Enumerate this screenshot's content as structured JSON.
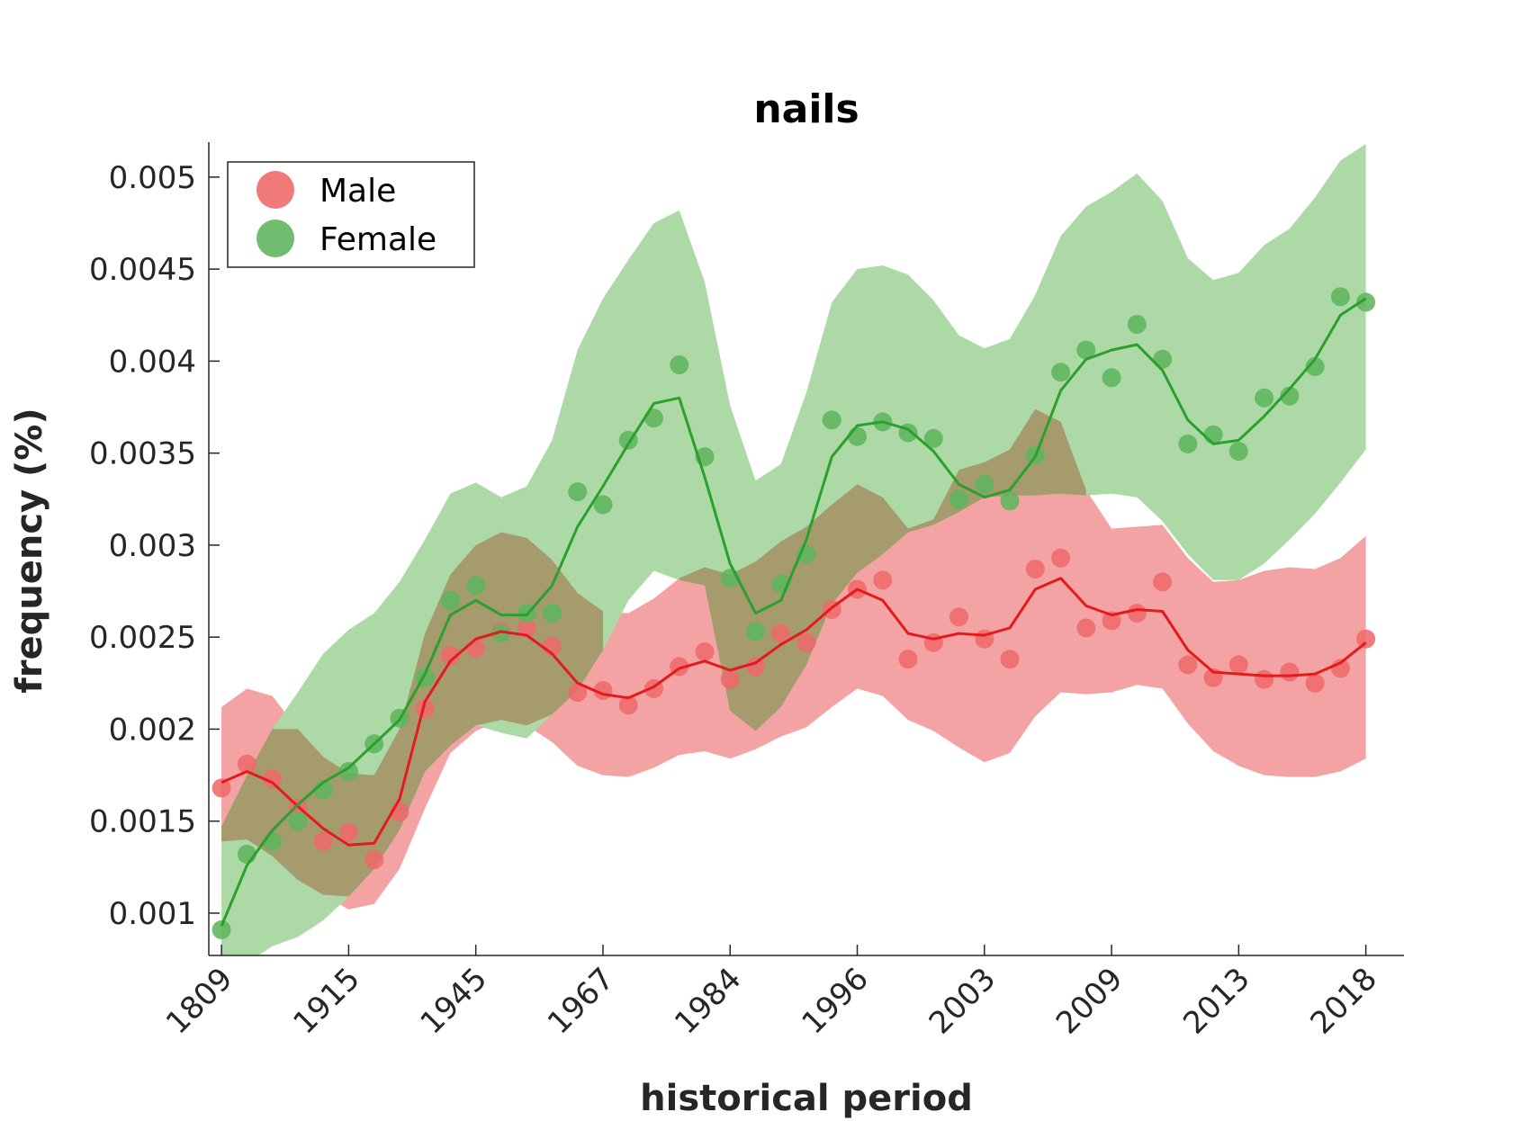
{
  "chart_data": {
    "type": "line",
    "title": "nails",
    "xlabel": "historical period",
    "ylabel": "frequency (%)",
    "x_tick_labels": [
      "1809",
      "1915",
      "1945",
      "1967",
      "1984",
      "1996",
      "2003",
      "2009",
      "2013",
      "2018"
    ],
    "y_tick_labels": [
      "0.001",
      "0.0015",
      "0.002",
      "0.0025",
      "0.003",
      "0.0035",
      "0.004",
      "0.0045",
      "0.005"
    ],
    "y_ticks": [
      0.001,
      0.0015,
      0.002,
      0.0025,
      0.003,
      0.0035,
      0.004,
      0.0045,
      0.005
    ],
    "ylim": [
      0.00077,
      0.00519
    ],
    "xlim": [
      -0.5,
      46.5
    ],
    "legend_position": "top-left",
    "grid": false,
    "series": [
      {
        "name": "Male",
        "color": "#e41a1c",
        "point_color": "#ee6a6b",
        "band_color": "#f4a3a4",
        "points": [
          0.00168,
          0.00181,
          0.00173,
          0.00157,
          0.00139,
          0.00144,
          0.00129,
          0.00155,
          0.00211,
          0.0024,
          0.00244,
          0.00253,
          0.00255,
          0.00245,
          0.0022,
          0.00221,
          0.00213,
          0.00222,
          0.00234,
          0.00242,
          0.00227,
          0.00234,
          0.00252,
          0.00247,
          0.00265,
          0.00276,
          0.00281,
          0.00238,
          0.00247,
          0.00261,
          0.00249,
          0.00238,
          0.00287,
          0.00293,
          0.00255,
          0.00259,
          0.00263,
          0.0028,
          0.00235,
          0.00228,
          0.00235,
          0.00227,
          0.00231,
          0.00225,
          0.00233,
          0.00249
        ],
        "fit": [
          0.00171,
          0.00177,
          0.00171,
          0.00158,
          0.00146,
          0.00137,
          0.00138,
          0.00162,
          0.00215,
          0.00237,
          0.00249,
          0.00253,
          0.00251,
          0.00241,
          0.00225,
          0.00219,
          0.00217,
          0.00223,
          0.00233,
          0.00237,
          0.00232,
          0.00236,
          0.00246,
          0.00254,
          0.00266,
          0.00276,
          0.0027,
          0.00252,
          0.00249,
          0.00252,
          0.00251,
          0.00255,
          0.00276,
          0.00282,
          0.00267,
          0.00262,
          0.00265,
          0.00264,
          0.00243,
          0.00231,
          0.0023,
          0.00229,
          0.00229,
          0.0023,
          0.00236,
          0.00247
        ],
        "band_upper": [
          0.00212,
          0.00222,
          0.00218,
          0.002,
          0.00185,
          0.00176,
          0.00175,
          0.002,
          0.00252,
          0.00284,
          0.003,
          0.00307,
          0.00304,
          0.00292,
          0.00274,
          0.00264,
          0.00263,
          0.00271,
          0.00282,
          0.00288,
          0.00284,
          0.00291,
          0.00302,
          0.0031,
          0.00322,
          0.00333,
          0.00326,
          0.00309,
          0.00314,
          0.00341,
          0.00345,
          0.00352,
          0.00374,
          0.00367,
          0.0033,
          0.00309,
          0.0031,
          0.00311,
          0.00293,
          0.0028,
          0.00281,
          0.00286,
          0.00288,
          0.00287,
          0.00293,
          0.00305
        ],
        "band_lower": [
          0.00139,
          0.0014,
          0.00131,
          0.00118,
          0.0011,
          0.00102,
          0.00105,
          0.00124,
          0.00157,
          0.00187,
          0.00199,
          0.00205,
          0.00202,
          0.00193,
          0.0018,
          0.00175,
          0.00174,
          0.00179,
          0.00186,
          0.00188,
          0.00184,
          0.00189,
          0.00196,
          0.00201,
          0.00212,
          0.00222,
          0.00218,
          0.00205,
          0.00199,
          0.0019,
          0.00182,
          0.00187,
          0.00207,
          0.0022,
          0.00219,
          0.0022,
          0.00224,
          0.00222,
          0.00203,
          0.00188,
          0.0018,
          0.00175,
          0.00174,
          0.00174,
          0.00177,
          0.00184
        ]
      },
      {
        "name": "Female",
        "color": "#2ca02c",
        "point_color": "#5fb55f",
        "band_color": "#acd9a6",
        "points": [
          0.00091,
          0.00132,
          0.00139,
          0.0015,
          0.00167,
          0.00177,
          0.00192,
          0.00206,
          0.00228,
          0.0027,
          0.00278,
          0.00252,
          0.00263,
          0.00263,
          0.00329,
          0.00322,
          0.00357,
          0.00369,
          0.00398,
          0.00348,
          0.00282,
          0.00253,
          0.00279,
          0.00295,
          0.00368,
          0.00359,
          0.00367,
          0.00361,
          0.00358,
          0.00325,
          0.00333,
          0.00324,
          0.00349,
          0.00394,
          0.00406,
          0.00391,
          0.0042,
          0.00401,
          0.00355,
          0.0036,
          0.00351,
          0.0038,
          0.00381,
          0.00397,
          0.00435,
          0.00432
        ],
        "fit": [
          0.00093,
          0.00126,
          0.00145,
          0.00159,
          0.00171,
          0.00179,
          0.00192,
          0.00205,
          0.0023,
          0.00262,
          0.0027,
          0.00262,
          0.00262,
          0.00278,
          0.0031,
          0.00332,
          0.00355,
          0.00377,
          0.0038,
          0.00337,
          0.0029,
          0.00263,
          0.0027,
          0.00303,
          0.00348,
          0.00365,
          0.00367,
          0.00363,
          0.00351,
          0.00333,
          0.00326,
          0.0033,
          0.00348,
          0.00384,
          0.00401,
          0.00406,
          0.00409,
          0.00395,
          0.00368,
          0.00355,
          0.00357,
          0.0037,
          0.00385,
          0.00401,
          0.00425,
          0.00434
        ],
        "band_upper": [
          0.00147,
          0.00175,
          0.002,
          0.0022,
          0.00241,
          0.00254,
          0.00263,
          0.0028,
          0.00303,
          0.00328,
          0.00334,
          0.00326,
          0.00332,
          0.00357,
          0.00406,
          0.00434,
          0.00455,
          0.00475,
          0.00482,
          0.00443,
          0.00376,
          0.00335,
          0.00344,
          0.00383,
          0.00432,
          0.0045,
          0.00452,
          0.00447,
          0.00433,
          0.00414,
          0.00407,
          0.00412,
          0.00436,
          0.00468,
          0.00484,
          0.00492,
          0.00502,
          0.00487,
          0.00456,
          0.00444,
          0.00448,
          0.00463,
          0.00472,
          0.00489,
          0.00509,
          0.00518
        ],
        "band_lower": [
          0.00049,
          0.00073,
          0.00082,
          0.00087,
          0.00096,
          0.00109,
          0.00124,
          0.00145,
          0.00177,
          0.00191,
          0.00202,
          0.00198,
          0.00195,
          0.00208,
          0.00221,
          0.00243,
          0.0027,
          0.00286,
          0.00281,
          0.00278,
          0.0021,
          0.00199,
          0.00212,
          0.00235,
          0.00268,
          0.00285,
          0.00295,
          0.00307,
          0.00311,
          0.00318,
          0.00326,
          0.00327,
          0.00327,
          0.00328,
          0.00327,
          0.00328,
          0.00326,
          0.00313,
          0.00295,
          0.00281,
          0.00281,
          0.0029,
          0.00303,
          0.00317,
          0.00334,
          0.00352
        ]
      }
    ],
    "overlap_color": "#a59b6d"
  }
}
